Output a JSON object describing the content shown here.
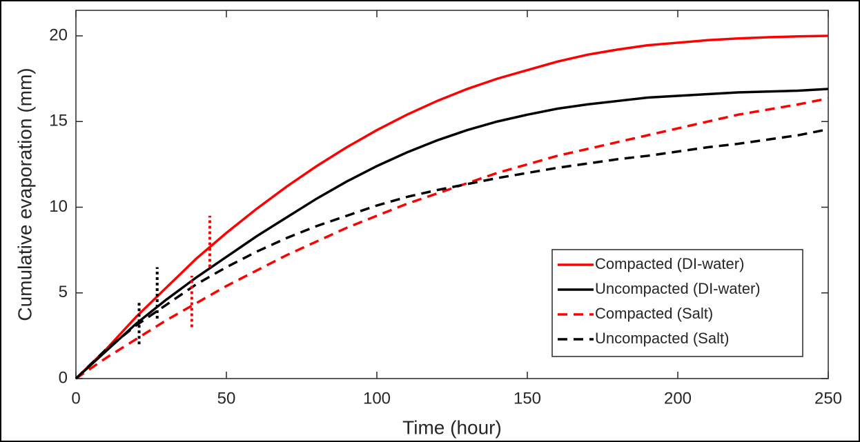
{
  "chart_data": {
    "type": "line",
    "xlabel": "Time (hour)",
    "ylabel": "Cumulative evaporation (mm)",
    "x": [
      0,
      10,
      20,
      30,
      40,
      50,
      60,
      70,
      80,
      90,
      100,
      110,
      120,
      130,
      140,
      150,
      160,
      170,
      180,
      190,
      200,
      210,
      220,
      230,
      240,
      250
    ],
    "xlim": [
      0,
      250
    ],
    "xticks": [
      0,
      50,
      100,
      150,
      200,
      250
    ],
    "ylim": [
      0,
      20
    ],
    "yticks": [
      0,
      5,
      10,
      15,
      20
    ],
    "legend": "lower right",
    "series": [
      {
        "name": "Compacted (DI-water)",
        "color": "#ff0000",
        "dash": "solid",
        "values": [
          0,
          1.7,
          3.6,
          5.3,
          7.0,
          8.5,
          9.9,
          11.2,
          12.4,
          13.5,
          14.5,
          15.4,
          16.2,
          16.9,
          17.5,
          18.0,
          18.5,
          18.9,
          19.2,
          19.45,
          19.6,
          19.75,
          19.85,
          19.92,
          19.97,
          20.0
        ]
      },
      {
        "name": "Uncompacted (DI-water)",
        "color": "#000000",
        "dash": "solid",
        "values": [
          0,
          1.6,
          3.2,
          4.6,
          5.9,
          7.1,
          8.3,
          9.4,
          10.5,
          11.5,
          12.4,
          13.2,
          13.9,
          14.5,
          15.0,
          15.4,
          15.75,
          16.0,
          16.2,
          16.4,
          16.5,
          16.6,
          16.7,
          16.75,
          16.8,
          16.9
        ]
      },
      {
        "name": "Compacted (Salt)",
        "color": "#ff0000",
        "dash": "dashed",
        "values": [
          0,
          1.2,
          2.3,
          3.4,
          4.4,
          5.4,
          6.3,
          7.2,
          8.0,
          8.8,
          9.5,
          10.2,
          10.8,
          11.4,
          12.0,
          12.5,
          13.0,
          13.4,
          13.8,
          14.2,
          14.6,
          15.0,
          15.4,
          15.7,
          16.0,
          16.35
        ]
      },
      {
        "name": "Uncompacted (Salt)",
        "color": "#000000",
        "dash": "dashed",
        "values": [
          0,
          1.7,
          3.1,
          4.3,
          5.5,
          6.5,
          7.4,
          8.2,
          8.9,
          9.5,
          10.1,
          10.6,
          11.0,
          11.35,
          11.7,
          12.0,
          12.3,
          12.55,
          12.8,
          13.0,
          13.25,
          13.5,
          13.7,
          13.95,
          14.2,
          14.55
        ]
      }
    ],
    "markers": [
      {
        "x": 21,
        "ymin": 2.0,
        "ymax": 4.5,
        "color": "#000000"
      },
      {
        "x": 27,
        "ymin": 3.5,
        "ymax": 6.5,
        "color": "#000000"
      },
      {
        "x": 38.5,
        "ymin": 3.0,
        "ymax": 6.0,
        "color": "#ff0000"
      },
      {
        "x": 44.5,
        "ymin": 6.5,
        "ymax": 9.5,
        "color": "#ff0000"
      }
    ]
  }
}
